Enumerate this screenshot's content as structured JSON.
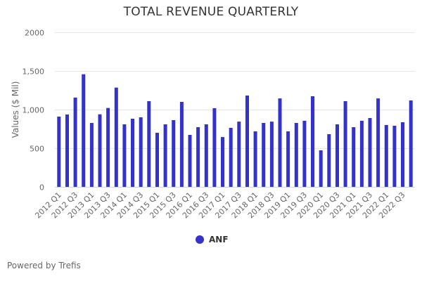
{
  "chart_data": {
    "type": "bar",
    "title": "TOTAL REVENUE QUARTERLY",
    "xlabel": "",
    "ylabel": "Values ($ Mil)",
    "ylim": [
      0,
      2000
    ],
    "yticks": [
      0,
      500,
      1000,
      1500,
      2000
    ],
    "ytick_labels": [
      "0",
      "500",
      "1,000",
      "1,500",
      "2000"
    ],
    "grid": true,
    "legend_position": "bottom-center",
    "categories": [
      "2012 Q1",
      "2012 Q2",
      "2012 Q3",
      "2012 Q4",
      "2013 Q1",
      "2013 Q2",
      "2013 Q3",
      "2013 Q4",
      "2014 Q1",
      "2014 Q2",
      "2014 Q3",
      "2014 Q4",
      "2015 Q1",
      "2015 Q2",
      "2015 Q3",
      "2015 Q4",
      "2016 Q1",
      "2016 Q2",
      "2016 Q3",
      "2016 Q4",
      "2017 Q1",
      "2017 Q2",
      "2017 Q3",
      "2017 Q4",
      "2018 Q1",
      "2018 Q2",
      "2018 Q3",
      "2018 Q4",
      "2019 Q1",
      "2019 Q2",
      "2019 Q3",
      "2019 Q4",
      "2020 Q1",
      "2020 Q2",
      "2020 Q3",
      "2020 Q4",
      "2021 Q1",
      "2021 Q2",
      "2021 Q3",
      "2021 Q4",
      "2022 Q1",
      "2022 Q2",
      "2022 Q3",
      "2022 Q4"
    ],
    "xtick_labels": [
      "2012 Q1",
      "2012 Q3",
      "2013 Q1",
      "2013 Q3",
      "2014 Q1",
      "2014 Q3",
      "2015 Q1",
      "2015 Q3",
      "2016 Q1",
      "2016 Q3",
      "2017 Q1",
      "2017 Q3",
      "2018 Q1",
      "2018 Q3",
      "2019 Q1",
      "2019 Q3",
      "2020 Q1",
      "2020 Q3",
      "2021 Q1",
      "2021 Q3",
      "2022 Q1",
      "2022 Q3"
    ],
    "series": [
      {
        "name": "ANF",
        "color": "#3333cc",
        "values": [
          909,
          936,
          1155,
          1457,
          827,
          939,
          1021,
          1285,
          809,
          882,
          900,
          1109,
          700,
          809,
          864,
          1100,
          673,
          773,
          809,
          1018,
          645,
          764,
          845,
          1182,
          718,
          827,
          845,
          1145,
          718,
          827,
          855,
          1173,
          473,
          682,
          809,
          1109,
          773,
          855,
          891,
          1145,
          800,
          791,
          836,
          1118
        ]
      }
    ]
  },
  "footer": {
    "text": "Powered by Trefis"
  },
  "colors": {
    "bar": "#3333cc",
    "grid": "#e6e6e6",
    "axis": "#ccd6eb",
    "text": "#666666",
    "title": "#333333"
  }
}
